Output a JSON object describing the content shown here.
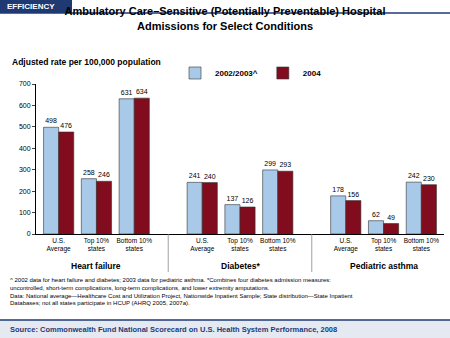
{
  "header": "EFFICIENCY",
  "chart_data": {
    "type": "bar",
    "title": "Ambulatory Care–Sensitive (Potentially Preventable) Hospital\nAdmissions for Select Conditions",
    "y_label": "Adjusted rate per 100,000 population",
    "categories": [
      "U.S. Average",
      "Top 10% states",
      "Bottom 10% states",
      "U.S. Average",
      "Top 10% states",
      "Bottom 10% states",
      "U.S. Average",
      "Top 10% states",
      "Bottom 10% states"
    ],
    "groups": [
      "Heart failure",
      "Heart failure",
      "Heart failure",
      "Diabetes*",
      "Diabetes*",
      "Diabetes*",
      "Pediatric asthma",
      "Pediatric asthma",
      "Pediatric asthma"
    ],
    "series": [
      {
        "name": "2002/2003^",
        "color": "#a9c9e8",
        "values": [
          498,
          258,
          631,
          241,
          137,
          299,
          178,
          62,
          242
        ]
      },
      {
        "name": "2004",
        "color": "#800c1e",
        "values": [
          476,
          246,
          634,
          240,
          126,
          293,
          156,
          49,
          230
        ]
      }
    ],
    "ylim": [
      0,
      700
    ],
    "yticks": [
      0,
      100,
      200,
      300,
      400,
      500,
      600,
      700
    ],
    "grid": false,
    "legend": "top",
    "data_labels": true
  },
  "footnote": "^ 2002 data for heart failure and diabetes; 2003 data for pediatric asthma. *Combines four diabetes admission measures: uncontrolled, short-term complications, long-term complications, and lower extremity amputations.",
  "data_note": "Data: National average—Healthcare Cost and Utilization Project, Nationwide Inpatient Sample; State distribution—State Inpatient Databases; not all states participate in HCUP (AHRQ 2005, 2007a).",
  "source": "Source: Commonwealth Fund National Scorecard on U.S. Health System Performance, 2008"
}
